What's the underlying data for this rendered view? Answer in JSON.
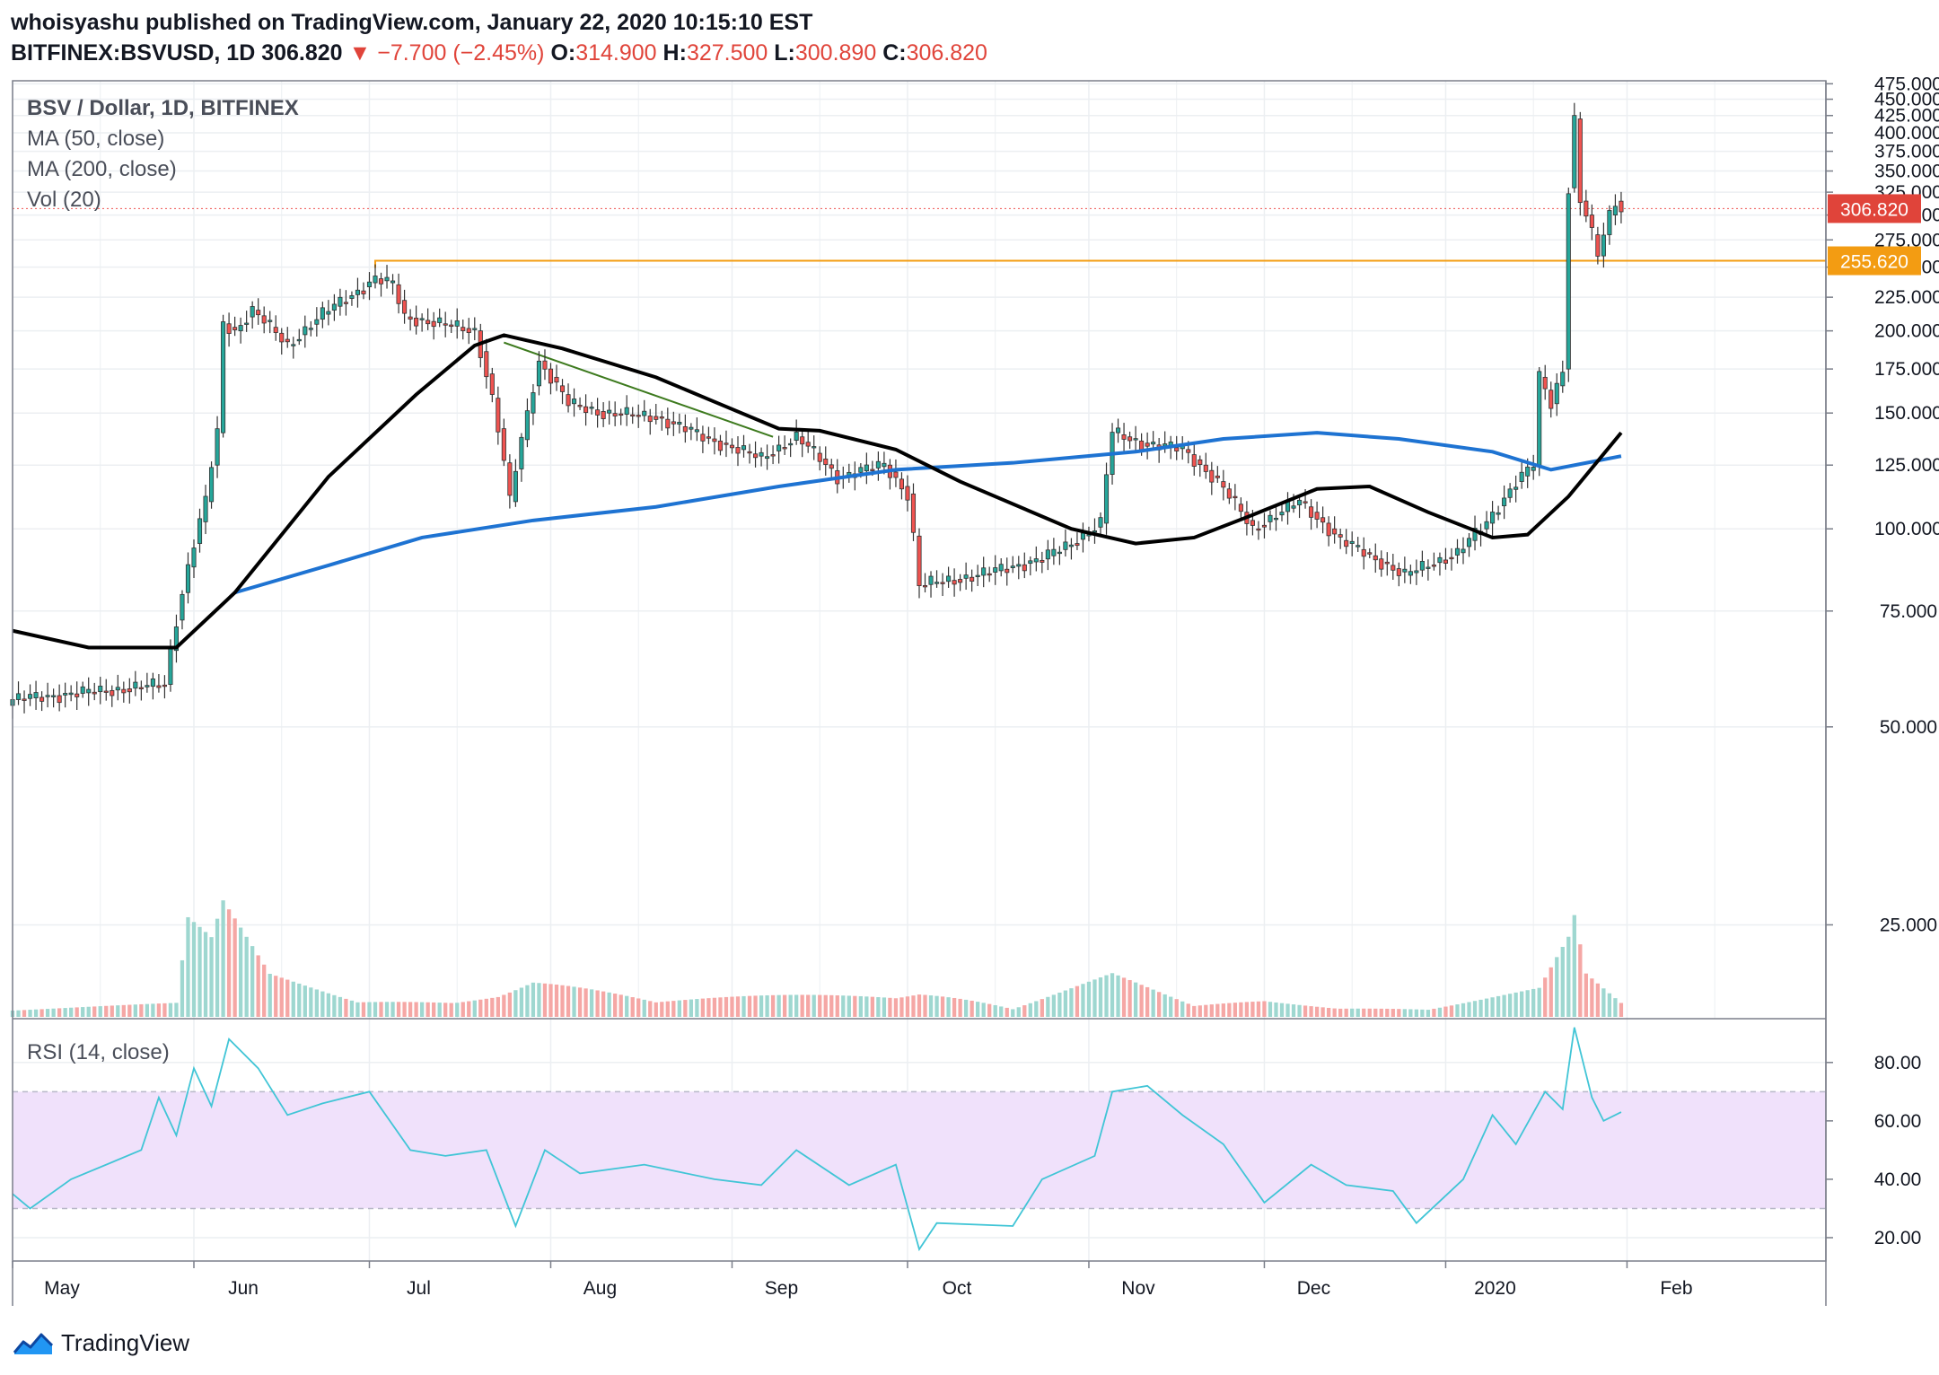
{
  "header": {
    "line1": "whoisyashu published on TradingView.com, January 22, 2020 10:15:10 EST",
    "symbol": "BITFINEX:BSVUSD, 1D",
    "last": "306.820",
    "change": "▼ −7.700 (−2.45%)",
    "o_label": "O:",
    "o": "314.900",
    "h_label": "H:",
    "h": "327.500",
    "l_label": "L:",
    "l": "300.890",
    "c_label": "C:",
    "c": "306.820"
  },
  "legend": {
    "title": "BSV / Dollar, 1D, BITFINEX",
    "ma50": "MA (50, close)",
    "ma200": "MA (200, close)",
    "vol": "Vol (20)",
    "rsi": "RSI (14, close)"
  },
  "price_axis": {
    "ticks": [
      "475.000",
      "450.000",
      "425.000",
      "400.000",
      "375.000",
      "350.000",
      "325.000",
      "300.000",
      "275.000",
      "250.000",
      "225.000",
      "200.000",
      "175.000",
      "150.000",
      "125.000",
      "100.000",
      "75.000",
      "50.000",
      "25.000"
    ],
    "tick_values": [
      475,
      450,
      425,
      400,
      375,
      350,
      325,
      300,
      275,
      250,
      225,
      200,
      175,
      150,
      125,
      100,
      75,
      50,
      25
    ],
    "last_price_label": "306.820",
    "level_label": "255.620"
  },
  "rsi_axis": {
    "ticks": [
      "80.00",
      "60.00",
      "40.00",
      "20.00"
    ],
    "tick_values": [
      80,
      60,
      40,
      20
    ],
    "band": [
      30,
      70
    ]
  },
  "time_axis": {
    "labels": [
      "May",
      "Jun",
      "Jul",
      "Aug",
      "Sep",
      "Oct",
      "Nov",
      "Dec",
      "2020",
      "Feb"
    ],
    "label_days": [
      0,
      31,
      61,
      92,
      123,
      153,
      184,
      214,
      245,
      276
    ]
  },
  "footer": {
    "brand": "TradingView",
    "logo": "tradingview-logo-icon"
  },
  "colors": {
    "up": "#26a69a",
    "down": "#ef5350",
    "candle_border": "#333333",
    "ma50": "#000000",
    "ma200": "#1e73d2",
    "level": "#f39c12",
    "price_line": "#ef5350",
    "rsi_line": "#41c5d6",
    "rsi_band": "#f0e1fb",
    "vol_up": "#9ed7d0",
    "vol_down": "#f5a7a5",
    "grid": "#eceff2"
  },
  "chart_data": {
    "type": "candlestick",
    "title": "BSV / Dollar, 1D, BITFINEX",
    "x_start": "2019-04-22",
    "ylim": [
      18,
      480
    ],
    "rsi_ylim": [
      12,
      95
    ],
    "trendline": [
      {
        "date": "2019-07-15",
        "value": 192
      },
      {
        "date": "2019-08-30",
        "value": 138
      }
    ],
    "level": {
      "value": 255.62,
      "from": "2019-06-23"
    },
    "last_price": 306.82,
    "ohlc_keypoints": [
      {
        "date": "2019-04-22",
        "close": 55
      },
      {
        "date": "2019-05-10",
        "close": 57
      },
      {
        "date": "2019-05-18",
        "close": 58
      },
      {
        "date": "2019-05-21",
        "close": 80
      },
      {
        "date": "2019-05-25",
        "close": 110
      },
      {
        "date": "2019-05-27",
        "close": 140
      },
      {
        "date": "2019-05-28",
        "close": 205
      },
      {
        "date": "2019-05-30",
        "close": 200
      },
      {
        "date": "2019-06-02",
        "close": 215
      },
      {
        "date": "2019-06-08",
        "close": 190
      },
      {
        "date": "2019-06-14",
        "close": 212
      },
      {
        "date": "2019-06-20",
        "close": 230
      },
      {
        "date": "2019-06-23",
        "close": 240
      },
      {
        "date": "2019-06-26",
        "close": 235
      },
      {
        "date": "2019-06-28",
        "close": 210
      },
      {
        "date": "2019-07-04",
        "close": 205
      },
      {
        "date": "2019-07-10",
        "close": 200
      },
      {
        "date": "2019-07-13",
        "close": 158
      },
      {
        "date": "2019-07-16",
        "close": 110
      },
      {
        "date": "2019-07-19",
        "close": 150
      },
      {
        "date": "2019-07-21",
        "close": 180
      },
      {
        "date": "2019-07-26",
        "close": 155
      },
      {
        "date": "2019-08-01",
        "close": 150
      },
      {
        "date": "2019-08-10",
        "close": 148
      },
      {
        "date": "2019-08-18",
        "close": 138
      },
      {
        "date": "2019-08-28",
        "close": 128
      },
      {
        "date": "2019-09-03",
        "close": 138
      },
      {
        "date": "2019-09-10",
        "close": 120
      },
      {
        "date": "2019-09-18",
        "close": 125
      },
      {
        "date": "2019-09-22",
        "close": 113
      },
      {
        "date": "2019-09-24",
        "close": 82
      },
      {
        "date": "2019-10-04",
        "close": 85
      },
      {
        "date": "2019-10-15",
        "close": 90
      },
      {
        "date": "2019-10-20",
        "close": 95
      },
      {
        "date": "2019-10-25",
        "close": 102
      },
      {
        "date": "2019-10-27",
        "close": 140
      },
      {
        "date": "2019-11-01",
        "close": 135
      },
      {
        "date": "2019-11-08",
        "close": 132
      },
      {
        "date": "2019-11-14",
        "close": 118
      },
      {
        "date": "2019-11-20",
        "close": 100
      },
      {
        "date": "2019-11-28",
        "close": 110
      },
      {
        "date": "2019-12-05",
        "close": 96
      },
      {
        "date": "2019-12-16",
        "close": 85
      },
      {
        "date": "2019-12-25",
        "close": 92
      },
      {
        "date": "2019-12-30",
        "close": 102
      },
      {
        "date": "2020-01-04",
        "close": 118
      },
      {
        "date": "2020-01-07",
        "close": 125
      },
      {
        "date": "2020-01-08",
        "close": 170
      },
      {
        "date": "2020-01-10",
        "close": 155
      },
      {
        "date": "2020-01-12",
        "close": 175
      },
      {
        "date": "2020-01-13",
        "close": 330
      },
      {
        "date": "2020-01-14",
        "close": 420
      },
      {
        "date": "2020-01-15",
        "close": 315
      },
      {
        "date": "2020-01-16",
        "close": 300
      },
      {
        "date": "2020-01-17",
        "close": 280
      },
      {
        "date": "2020-01-18",
        "close": 260
      },
      {
        "date": "2020-01-19",
        "close": 280
      },
      {
        "date": "2020-01-20",
        "close": 300
      },
      {
        "date": "2020-01-21",
        "close": 314.9
      },
      {
        "date": "2020-01-22",
        "close": 306.82
      }
    ],
    "ma50": [
      {
        "date": "2019-04-22",
        "value": 70
      },
      {
        "date": "2019-05-05",
        "value": 66
      },
      {
        "date": "2019-05-20",
        "value": 66
      },
      {
        "date": "2019-05-30",
        "value": 80
      },
      {
        "date": "2019-06-15",
        "value": 120
      },
      {
        "date": "2019-06-30",
        "value": 160
      },
      {
        "date": "2019-07-10",
        "value": 190
      },
      {
        "date": "2019-07-15",
        "value": 197
      },
      {
        "date": "2019-07-25",
        "value": 188
      },
      {
        "date": "2019-08-10",
        "value": 170
      },
      {
        "date": "2019-08-20",
        "value": 156
      },
      {
        "date": "2019-08-31",
        "value": 142
      },
      {
        "date": "2019-09-07",
        "value": 141
      },
      {
        "date": "2019-09-20",
        "value": 132
      },
      {
        "date": "2019-10-01",
        "value": 118
      },
      {
        "date": "2019-10-20",
        "value": 100
      },
      {
        "date": "2019-10-31",
        "value": 95
      },
      {
        "date": "2019-11-10",
        "value": 97
      },
      {
        "date": "2019-11-20",
        "value": 105
      },
      {
        "date": "2019-12-01",
        "value": 115
      },
      {
        "date": "2019-12-10",
        "value": 116
      },
      {
        "date": "2019-12-20",
        "value": 106
      },
      {
        "date": "2019-12-31",
        "value": 97
      },
      {
        "date": "2020-01-06",
        "value": 98
      },
      {
        "date": "2020-01-13",
        "value": 112
      },
      {
        "date": "2020-01-22",
        "value": 140
      }
    ],
    "ma200": [
      {
        "date": "2019-05-30",
        "value": 80
      },
      {
        "date": "2019-06-15",
        "value": 88
      },
      {
        "date": "2019-07-01",
        "value": 97
      },
      {
        "date": "2019-07-20",
        "value": 103
      },
      {
        "date": "2019-08-10",
        "value": 108
      },
      {
        "date": "2019-08-31",
        "value": 116
      },
      {
        "date": "2019-09-20",
        "value": 123
      },
      {
        "date": "2019-10-10",
        "value": 126
      },
      {
        "date": "2019-10-31",
        "value": 131
      },
      {
        "date": "2019-11-15",
        "value": 137
      },
      {
        "date": "2019-12-01",
        "value": 140
      },
      {
        "date": "2019-12-15",
        "value": 137
      },
      {
        "date": "2019-12-31",
        "value": 131
      },
      {
        "date": "2020-01-10",
        "value": 123
      },
      {
        "date": "2020-01-22",
        "value": 129
      }
    ],
    "volume_keypoints": [
      {
        "date": "2019-04-22",
        "value": 8
      },
      {
        "date": "2019-05-20",
        "value": 10
      },
      {
        "date": "2019-05-22",
        "value": 70
      },
      {
        "date": "2019-05-26",
        "value": 55
      },
      {
        "date": "2019-05-28",
        "value": 80
      },
      {
        "date": "2019-06-05",
        "value": 30
      },
      {
        "date": "2019-06-20",
        "value": 12
      },
      {
        "date": "2019-07-14",
        "value": 20
      },
      {
        "date": "2019-07-20",
        "value": 30
      },
      {
        "date": "2019-08-10",
        "value": 10
      },
      {
        "date": "2019-09-24",
        "value": 25
      },
      {
        "date": "2019-10-10",
        "value": 6
      },
      {
        "date": "2019-10-27",
        "value": 30
      },
      {
        "date": "2019-11-10",
        "value": 8
      },
      {
        "date": "2019-11-22",
        "value": 14
      },
      {
        "date": "2019-12-20",
        "value": 6
      },
      {
        "date": "2020-01-08",
        "value": 20
      },
      {
        "date": "2020-01-13",
        "value": 55
      },
      {
        "date": "2020-01-14",
        "value": 70
      },
      {
        "date": "2020-01-16",
        "value": 30
      },
      {
        "date": "2020-01-22",
        "value": 10
      }
    ],
    "rsi": [
      {
        "date": "2019-04-22",
        "value": 35
      },
      {
        "date": "2019-04-25",
        "value": 30
      },
      {
        "date": "2019-05-02",
        "value": 40
      },
      {
        "date": "2019-05-14",
        "value": 50
      },
      {
        "date": "2019-05-17",
        "value": 68
      },
      {
        "date": "2019-05-20",
        "value": 55
      },
      {
        "date": "2019-05-23",
        "value": 78
      },
      {
        "date": "2019-05-26",
        "value": 65
      },
      {
        "date": "2019-05-29",
        "value": 88
      },
      {
        "date": "2019-06-03",
        "value": 78
      },
      {
        "date": "2019-06-08",
        "value": 62
      },
      {
        "date": "2019-06-14",
        "value": 66
      },
      {
        "date": "2019-06-22",
        "value": 70
      },
      {
        "date": "2019-06-29",
        "value": 50
      },
      {
        "date": "2019-07-05",
        "value": 48
      },
      {
        "date": "2019-07-12",
        "value": 50
      },
      {
        "date": "2019-07-17",
        "value": 24
      },
      {
        "date": "2019-07-22",
        "value": 50
      },
      {
        "date": "2019-07-28",
        "value": 42
      },
      {
        "date": "2019-08-08",
        "value": 45
      },
      {
        "date": "2019-08-20",
        "value": 40
      },
      {
        "date": "2019-08-28",
        "value": 38
      },
      {
        "date": "2019-09-03",
        "value": 50
      },
      {
        "date": "2019-09-12",
        "value": 38
      },
      {
        "date": "2019-09-20",
        "value": 45
      },
      {
        "date": "2019-09-24",
        "value": 16
      },
      {
        "date": "2019-09-27",
        "value": 25
      },
      {
        "date": "2019-10-10",
        "value": 24
      },
      {
        "date": "2019-10-15",
        "value": 40
      },
      {
        "date": "2019-10-24",
        "value": 48
      },
      {
        "date": "2019-10-27",
        "value": 70
      },
      {
        "date": "2019-11-02",
        "value": 72
      },
      {
        "date": "2019-11-08",
        "value": 62
      },
      {
        "date": "2019-11-15",
        "value": 52
      },
      {
        "date": "2019-11-22",
        "value": 32
      },
      {
        "date": "2019-11-30",
        "value": 45
      },
      {
        "date": "2019-12-06",
        "value": 38
      },
      {
        "date": "2019-12-14",
        "value": 36
      },
      {
        "date": "2019-12-18",
        "value": 25
      },
      {
        "date": "2019-12-26",
        "value": 40
      },
      {
        "date": "2019-12-31",
        "value": 62
      },
      {
        "date": "2020-01-04",
        "value": 52
      },
      {
        "date": "2020-01-09",
        "value": 70
      },
      {
        "date": "2020-01-12",
        "value": 64
      },
      {
        "date": "2020-01-14",
        "value": 92
      },
      {
        "date": "2020-01-17",
        "value": 68
      },
      {
        "date": "2020-01-19",
        "value": 60
      },
      {
        "date": "2020-01-22",
        "value": 63
      }
    ]
  }
}
